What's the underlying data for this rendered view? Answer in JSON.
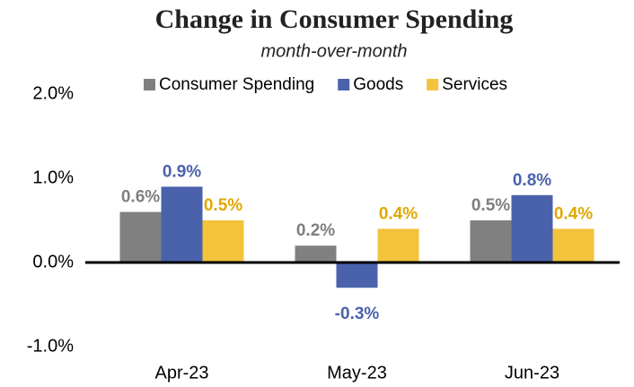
{
  "chart_data": {
    "type": "bar",
    "title": "Change in Consumer Spending",
    "subtitle": "month-over-month",
    "categories": [
      "Apr-23",
      "May-23",
      "Jun-23"
    ],
    "series": [
      {
        "name": "Consumer Spending",
        "color": "#808080",
        "label_color": "#7f7f7f",
        "values": [
          0.6,
          0.2,
          0.5
        ],
        "value_labels": [
          "0.6%",
          "0.2%",
          "0.5%"
        ]
      },
      {
        "name": "Goods",
        "color": "#4a62ac",
        "label_color": "#4a62ac",
        "values": [
          0.9,
          -0.3,
          0.8
        ],
        "value_labels": [
          "0.9%",
          "-0.3%",
          "0.8%"
        ]
      },
      {
        "name": "Services",
        "color": "#f2c33b",
        "label_color": "#e0a800",
        "values": [
          0.5,
          0.4,
          0.4
        ],
        "value_labels": [
          "0.5%",
          "0.4%",
          "0.4%"
        ]
      }
    ],
    "ylim": [
      -1,
      2
    ],
    "yticks": [
      {
        "value": -1,
        "label": "-1.0%"
      },
      {
        "value": 0,
        "label": "0.0%"
      },
      {
        "value": 1,
        "label": "1.0%"
      },
      {
        "value": 2,
        "label": "2.0%"
      }
    ],
    "grid": false,
    "legend": "top"
  }
}
